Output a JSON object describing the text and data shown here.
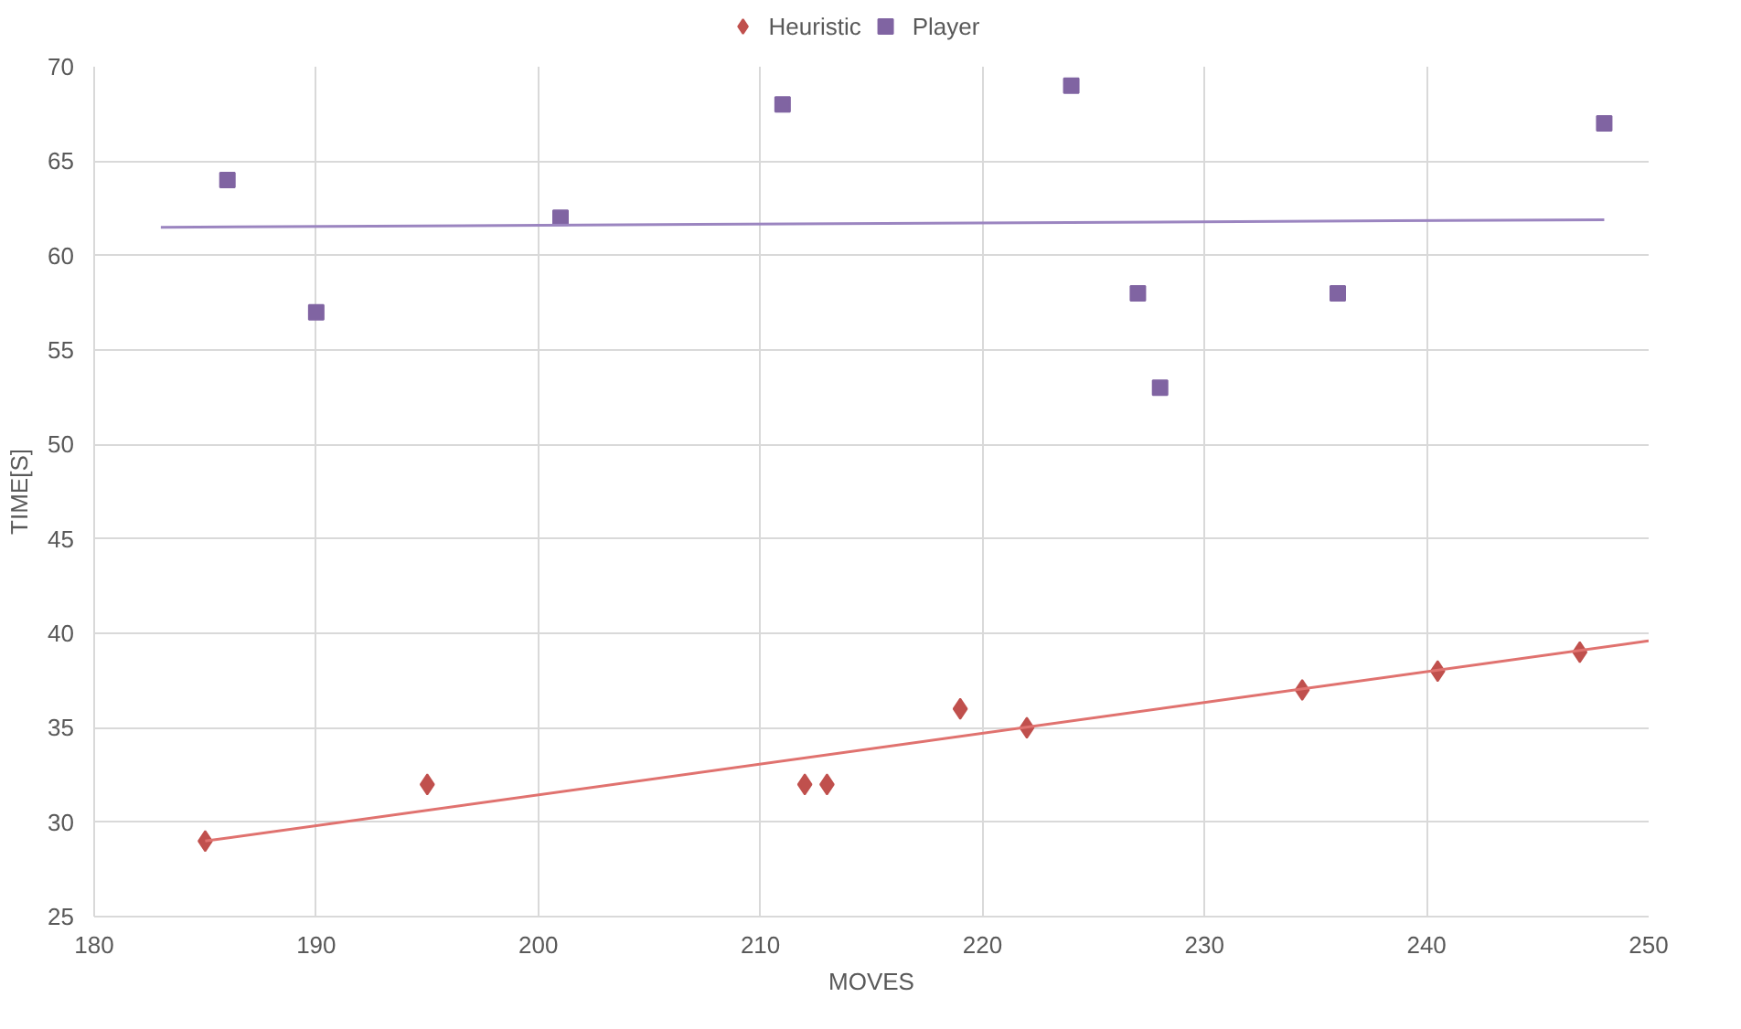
{
  "chart_data": {
    "type": "scatter",
    "xlabel": "MOVES",
    "ylabel": "TIME[S]",
    "xlim": [
      180,
      250
    ],
    "xticks": [
      180,
      190,
      200,
      210,
      220,
      230,
      240,
      250
    ],
    "ylim": [
      25,
      70
    ],
    "yticks": [
      25,
      30,
      35,
      40,
      45,
      50,
      55,
      60,
      65,
      70
    ],
    "grid": true,
    "legend": "top",
    "series": [
      {
        "name": "Heuristic",
        "color": "#c0504d",
        "marker": "diamond",
        "x": [
          185,
          195,
          212,
          213,
          219,
          222,
          234.4,
          240.5,
          246.9
        ],
        "values": [
          29,
          32,
          32,
          32,
          36,
          35,
          37,
          38,
          39
        ]
      },
      {
        "name": "Player",
        "color": "#8064a2",
        "marker": "square",
        "x": [
          186,
          190,
          201,
          211,
          224,
          227,
          228,
          236,
          248
        ],
        "values": [
          64,
          57,
          62,
          68,
          69,
          58,
          53,
          58,
          67
        ]
      },
      {
        "type": "line",
        "color": "#e0726f",
        "marker": "none",
        "x": [
          185,
          250
        ],
        "values": [
          29,
          39.6
        ]
      },
      {
        "type": "line",
        "color": "#9b85c0",
        "marker": "none",
        "x": [
          183,
          248
        ],
        "values": [
          61.5,
          61.9
        ]
      }
    ]
  }
}
